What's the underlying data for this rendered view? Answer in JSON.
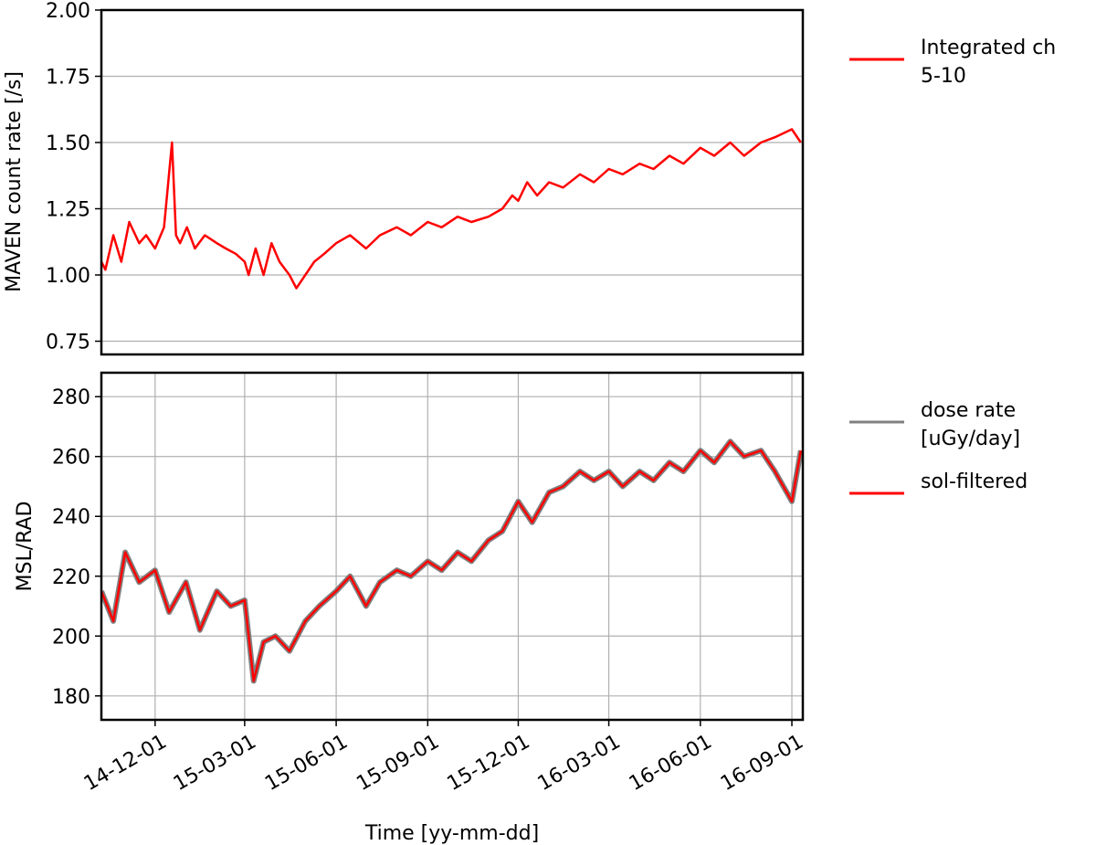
{
  "chart_data": [
    {
      "type": "line",
      "panel": "top",
      "ylabel": "MAVEN count rate [/s]",
      "ylim": [
        0.7,
        2.0
      ],
      "yticks": [
        0.75,
        1.0,
        1.25,
        1.5,
        1.75,
        2.0
      ],
      "ytick_labels": [
        "0.75",
        "1.00",
        "1.25",
        "1.50",
        "1.75",
        "2.00"
      ],
      "xlim": [
        "2014-10-08",
        "2016-09-12"
      ],
      "grid": "y-only",
      "legend_placement": "outside-right",
      "series": [
        {
          "name": "Integrated ch\n 5-10",
          "color": "#ff0000",
          "x": [
            "2014-10-08",
            "2014-10-12",
            "2014-10-20",
            "2014-10-28",
            "2014-11-05",
            "2014-11-15",
            "2014-11-22",
            "2014-12-01",
            "2014-12-10",
            "2014-12-18",
            "2014-12-22",
            "2014-12-26",
            "2015-01-02",
            "2015-01-10",
            "2015-01-20",
            "2015-02-01",
            "2015-02-10",
            "2015-02-20",
            "2015-03-01",
            "2015-03-05",
            "2015-03-12",
            "2015-03-20",
            "2015-03-28",
            "2015-04-05",
            "2015-04-15",
            "2015-04-22",
            "2015-05-01",
            "2015-05-10",
            "2015-05-20",
            "2015-06-01",
            "2015-06-15",
            "2015-07-01",
            "2015-07-15",
            "2015-08-01",
            "2015-08-15",
            "2015-09-01",
            "2015-09-15",
            "2015-10-01",
            "2015-10-15",
            "2015-11-01",
            "2015-11-15",
            "2015-11-25",
            "2015-12-01",
            "2015-12-10",
            "2015-12-20",
            "2016-01-01",
            "2016-01-15",
            "2016-02-01",
            "2016-02-15",
            "2016-03-01",
            "2016-03-15",
            "2016-04-01",
            "2016-04-15",
            "2016-05-01",
            "2016-05-15",
            "2016-06-01",
            "2016-06-15",
            "2016-07-01",
            "2016-07-15",
            "2016-08-01",
            "2016-08-15",
            "2016-09-01",
            "2016-09-10"
          ],
          "y": [
            1.05,
            1.02,
            1.15,
            1.05,
            1.2,
            1.12,
            1.15,
            1.1,
            1.18,
            1.5,
            1.15,
            1.12,
            1.18,
            1.1,
            1.15,
            1.12,
            1.1,
            1.08,
            1.05,
            1.0,
            1.1,
            1.0,
            1.12,
            1.05,
            1.0,
            0.95,
            1.0,
            1.05,
            1.08,
            1.12,
            1.15,
            1.1,
            1.15,
            1.18,
            1.15,
            1.2,
            1.18,
            1.22,
            1.2,
            1.22,
            1.25,
            1.3,
            1.28,
            1.35,
            1.3,
            1.35,
            1.33,
            1.38,
            1.35,
            1.4,
            1.38,
            1.42,
            1.4,
            1.45,
            1.42,
            1.48,
            1.45,
            1.5,
            1.45,
            1.5,
            1.52,
            1.55,
            1.5
          ]
        }
      ]
    },
    {
      "type": "line",
      "panel": "bottom",
      "ylabel": "MSL/RAD",
      "xlabel": "Time [yy-mm-dd]",
      "ylim": [
        172,
        288
      ],
      "yticks": [
        180,
        200,
        220,
        240,
        260,
        280
      ],
      "ytick_labels": [
        "180",
        "200",
        "220",
        "240",
        "260",
        "280"
      ],
      "xlim": [
        "2014-10-08",
        "2016-09-12"
      ],
      "xticks": [
        "2014-12-01",
        "2015-03-01",
        "2015-06-01",
        "2015-09-01",
        "2015-12-01",
        "2016-03-01",
        "2016-06-01",
        "2016-09-01"
      ],
      "xtick_labels": [
        "14-12-01",
        "15-03-01",
        "15-06-01",
        "15-09-01",
        "15-12-01",
        "16-03-01",
        "16-06-01",
        "16-09-01"
      ],
      "grid": "both",
      "legend_placement": "outside-right",
      "series": [
        {
          "name": "dose rate\n [uGy/day]",
          "color": "#808080",
          "x": [
            "2014-10-08",
            "2014-10-20",
            "2014-11-01",
            "2014-11-15",
            "2014-12-01",
            "2014-12-15",
            "2015-01-01",
            "2015-01-15",
            "2015-02-01",
            "2015-02-15",
            "2015-03-01",
            "2015-03-10",
            "2015-03-20",
            "2015-04-01",
            "2015-04-15",
            "2015-05-01",
            "2015-05-15",
            "2015-06-01",
            "2015-06-15",
            "2015-07-01",
            "2015-07-15",
            "2015-08-01",
            "2015-08-15",
            "2015-09-01",
            "2015-09-15",
            "2015-10-01",
            "2015-10-15",
            "2015-11-01",
            "2015-11-15",
            "2015-12-01",
            "2015-12-15",
            "2016-01-01",
            "2016-01-15",
            "2016-02-01",
            "2016-02-15",
            "2016-03-01",
            "2016-03-15",
            "2016-04-01",
            "2016-04-15",
            "2016-05-01",
            "2016-05-15",
            "2016-06-01",
            "2016-06-15",
            "2016-07-01",
            "2016-07-15",
            "2016-08-01",
            "2016-08-15",
            "2016-09-01",
            "2016-09-10"
          ],
          "y": [
            215,
            205,
            228,
            218,
            222,
            208,
            218,
            202,
            215,
            210,
            212,
            185,
            198,
            200,
            195,
            205,
            210,
            215,
            220,
            210,
            218,
            222,
            220,
            225,
            222,
            228,
            225,
            232,
            235,
            245,
            238,
            248,
            250,
            255,
            252,
            255,
            250,
            255,
            252,
            258,
            255,
            262,
            258,
            265,
            260,
            262,
            255,
            245,
            262
          ]
        },
        {
          "name": "sol-filtered",
          "color": "#ff0000",
          "x": [
            "2014-10-08",
            "2014-10-20",
            "2014-11-01",
            "2014-11-15",
            "2014-12-01",
            "2014-12-15",
            "2015-01-01",
            "2015-01-15",
            "2015-02-01",
            "2015-02-15",
            "2015-03-01",
            "2015-03-10",
            "2015-03-20",
            "2015-04-01",
            "2015-04-15",
            "2015-05-01",
            "2015-05-15",
            "2015-06-01",
            "2015-06-15",
            "2015-07-01",
            "2015-07-15",
            "2015-08-01",
            "2015-08-15",
            "2015-09-01",
            "2015-09-15",
            "2015-10-01",
            "2015-10-15",
            "2015-11-01",
            "2015-11-15",
            "2015-12-01",
            "2015-12-15",
            "2016-01-01",
            "2016-01-15",
            "2016-02-01",
            "2016-02-15",
            "2016-03-01",
            "2016-03-15",
            "2016-04-01",
            "2016-04-15",
            "2016-05-01",
            "2016-05-15",
            "2016-06-01",
            "2016-06-15",
            "2016-07-01",
            "2016-07-15",
            "2016-08-01",
            "2016-08-15",
            "2016-09-01",
            "2016-09-10"
          ],
          "y": [
            215,
            205,
            228,
            218,
            222,
            208,
            218,
            202,
            215,
            210,
            212,
            185,
            198,
            200,
            195,
            205,
            210,
            215,
            220,
            210,
            218,
            222,
            220,
            225,
            222,
            228,
            225,
            232,
            235,
            245,
            238,
            248,
            250,
            255,
            252,
            255,
            250,
            255,
            252,
            258,
            255,
            262,
            258,
            265,
            260,
            262,
            255,
            245,
            262
          ]
        }
      ]
    }
  ]
}
